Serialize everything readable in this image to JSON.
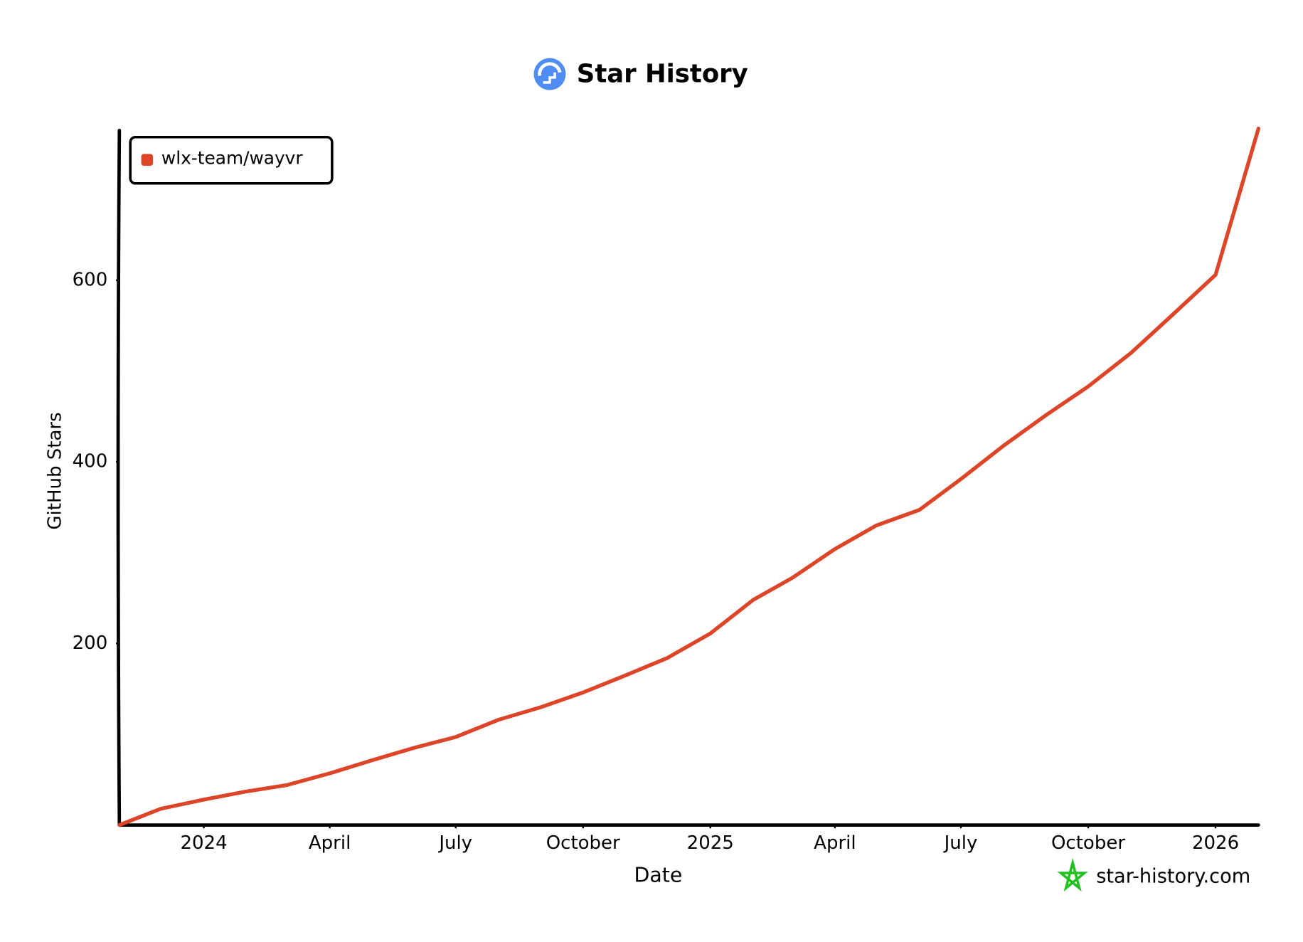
{
  "chart_data": {
    "type": "line",
    "title": "Star History",
    "x_label": "Date",
    "y_label": "GitHub Stars",
    "x": [
      "2023-11",
      "2023-12",
      "2024-01",
      "2024-02",
      "2024-03",
      "2024-04",
      "2024-05",
      "2024-06",
      "2024-07",
      "2024-08",
      "2024-09",
      "2024-10",
      "2024-11",
      "2024-12",
      "2025-01",
      "2025-02",
      "2025-03",
      "2025-04",
      "2025-05",
      "2025-06",
      "2025-07",
      "2025-08",
      "2025-09",
      "2025-10",
      "2025-11",
      "2025-12",
      "2026-01",
      "2026-02"
    ],
    "series": [
      {
        "name": "wlx-team/wayvr",
        "color": "#dd4528",
        "values": [
          0,
          18,
          28,
          37,
          44,
          57,
          71,
          85,
          97,
          116,
          130,
          146,
          165,
          184,
          211,
          248,
          272,
          304,
          330,
          347,
          381,
          418,
          452,
          483,
          520,
          562,
          606,
          767
        ]
      }
    ],
    "xlim": [
      "2023-11",
      "2026-02"
    ],
    "xticks": [
      {
        "value": "2024-01",
        "label": "2024"
      },
      {
        "value": "2024-04",
        "label": "April"
      },
      {
        "value": "2024-07",
        "label": "July"
      },
      {
        "value": "2024-10",
        "label": "October"
      },
      {
        "value": "2025-01",
        "label": "2025"
      },
      {
        "value": "2025-04",
        "label": "April"
      },
      {
        "value": "2025-07",
        "label": "July"
      },
      {
        "value": "2025-10",
        "label": "October"
      },
      {
        "value": "2026-01",
        "label": "2026"
      }
    ],
    "ylim": [
      0,
      765
    ],
    "yticks": [
      200,
      400,
      600
    ],
    "legend": "top-left",
    "grid": false,
    "watermark": "star-history.com"
  }
}
